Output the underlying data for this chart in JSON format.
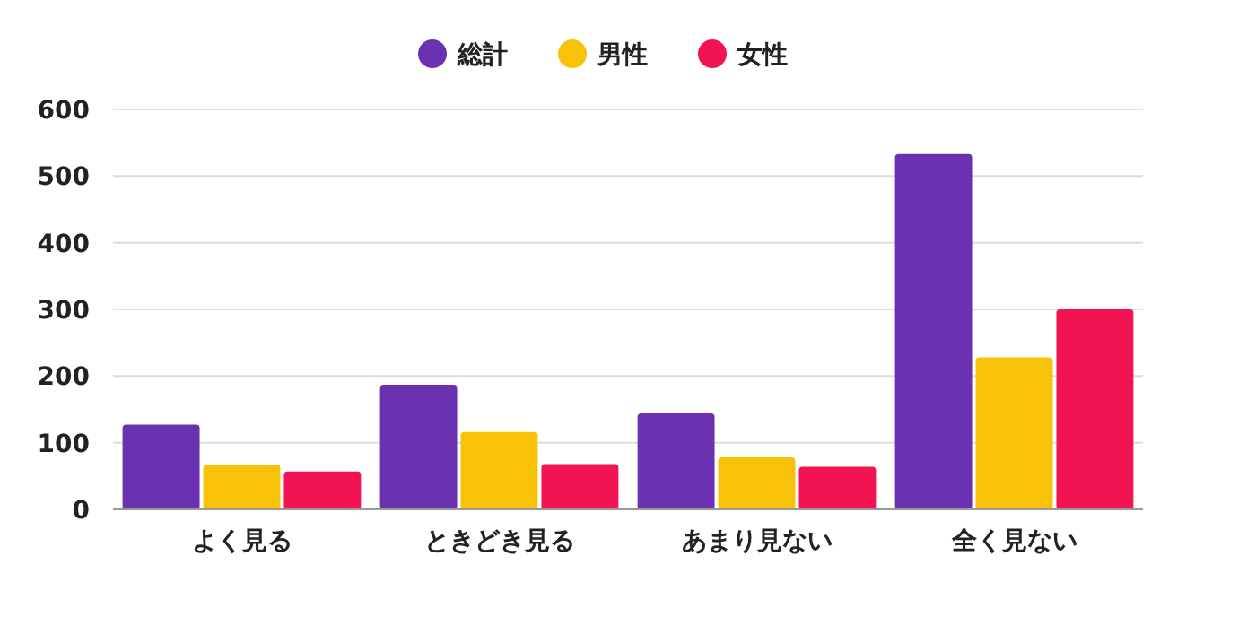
{
  "chart_data": {
    "type": "bar",
    "categories": [
      "よく見る",
      "ときどき見る",
      "あまり見ない",
      "全く見ない"
    ],
    "series": [
      {
        "name": "総計",
        "color": "#6a31b0",
        "values": [
          127,
          187,
          144,
          533
        ]
      },
      {
        "name": "男性",
        "color": "#f8c208",
        "values": [
          67,
          116,
          78,
          228
        ]
      },
      {
        "name": "女性",
        "color": "#f21452",
        "values": [
          57,
          68,
          64,
          300
        ]
      }
    ],
    "ylim": [
      0,
      600
    ],
    "yticks": [
      0,
      100,
      200,
      300,
      400,
      500,
      600
    ],
    "grid": "y",
    "legend": "top"
  }
}
